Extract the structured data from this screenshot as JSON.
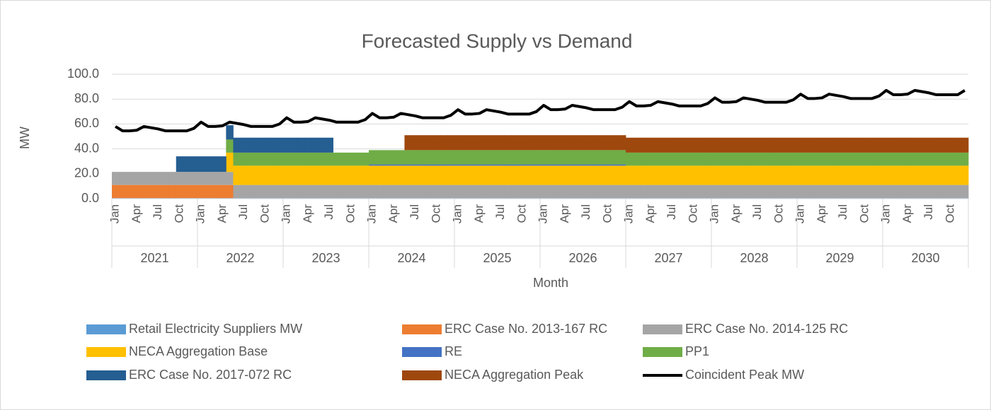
{
  "chart_data": {
    "type": "area",
    "title": "Forecasted Supply vs Demand",
    "y_label": "MW",
    "x_label": "Month",
    "ylim": [
      0,
      100
    ],
    "yticks": [
      {
        "value": 0,
        "label": "0.0"
      },
      {
        "value": 20,
        "label": "20.0"
      },
      {
        "value": 40,
        "label": "40.0"
      },
      {
        "value": 60,
        "label": "60.0"
      },
      {
        "value": 80,
        "label": "80.0"
      },
      {
        "value": 100,
        "label": "100.0"
      }
    ],
    "grid": true,
    "legend": "bottom",
    "years": [
      "2021",
      "2022",
      "2023",
      "2024",
      "2025",
      "2026",
      "2027",
      "2028",
      "2029",
      "2030"
    ],
    "categories": [
      "Jan",
      null,
      null,
      "Apr",
      null,
      null,
      "Jul",
      null,
      null,
      "Oct",
      null,
      null,
      "Jan",
      null,
      null,
      "Apr",
      null,
      null,
      "Jul",
      null,
      null,
      "Oct",
      null,
      null,
      "Jan",
      null,
      null,
      "Apr",
      null,
      null,
      "Jul",
      null,
      null,
      "Oct",
      null,
      null,
      "Jan",
      null,
      null,
      "Apr",
      null,
      null,
      "Jul",
      null,
      null,
      "Oct",
      null,
      null,
      "Jan",
      null,
      null,
      "Apr",
      null,
      null,
      "Jul",
      null,
      null,
      "Oct",
      null,
      null,
      "Jan",
      null,
      null,
      "Apr",
      null,
      null,
      "Jul",
      null,
      null,
      "Oct",
      null,
      null,
      "Jan",
      null,
      null,
      "Apr",
      null,
      null,
      "Jul",
      null,
      null,
      "Oct",
      null,
      null,
      "Jan",
      null,
      null,
      "Apr",
      null,
      null,
      "Jul",
      null,
      null,
      "Oct",
      null,
      null,
      "Jan",
      null,
      null,
      "Apr",
      null,
      null,
      "Jul",
      null,
      null,
      "Oct",
      null,
      null,
      "Jan",
      null,
      null,
      "Apr",
      null,
      null,
      "Jul",
      null,
      null,
      "Oct",
      null,
      null
    ],
    "series": [
      {
        "name": "Retail Electricity Suppliers MW",
        "color": "#5b9bd5",
        "values": [
          0.5,
          0.5,
          0.5,
          0.5,
          0.5,
          0.5,
          0.5,
          0.5,
          0.5,
          0.5,
          0.5,
          0.5,
          0.5,
          0.5,
          0.5,
          0.5,
          0.5,
          0.5,
          0.5,
          0.5,
          0.5,
          0.5,
          0.5,
          0.5,
          0.5,
          0.5,
          0.5,
          0.5,
          0.5,
          0.5,
          0.5,
          0.5,
          0.5,
          0.5,
          0.5,
          0.5,
          0.5,
          0.5,
          0.5,
          0.5,
          0.5,
          0.5,
          0.5,
          0.5,
          0.5,
          0.5,
          0.5,
          0.5,
          0.5,
          0.5,
          0.5,
          0.5,
          0.5,
          0.5,
          0.5,
          0.5,
          0.5,
          0.5,
          0.5,
          0.5,
          0.5,
          0.5,
          0.5,
          0.5,
          0.5,
          0.5,
          0.5,
          0.5,
          0.5,
          0.5,
          0.5,
          0.5,
          0.5,
          0.5,
          0.5,
          0.5,
          0.5,
          0.5,
          0.5,
          0.5,
          0.5,
          0.5,
          0.5,
          0.5,
          0.5,
          0.5,
          0.5,
          0.5,
          0.5,
          0.5,
          0.5,
          0.5,
          0.5,
          0.5,
          0.5,
          0.5,
          0.5,
          0.5,
          0.5,
          0.5,
          0.5,
          0.5,
          0.5,
          0.5,
          0.5,
          0.5,
          0.5,
          0.5,
          0.5,
          0.5,
          0.5,
          0.5,
          0.5,
          0.5,
          0.5,
          0.5,
          0.5,
          0.5,
          0.5,
          0.5
        ]
      },
      {
        "name": "ERC Case No. 2013-167 RC",
        "color": "#ed7d31",
        "values": [
          10.5,
          10.5,
          10.5,
          10.5,
          10.5,
          10.5,
          10.5,
          10.5,
          10.5,
          10.5,
          10.5,
          10.5,
          10.5,
          10.5,
          10.5,
          10.5,
          10.5,
          0,
          0,
          0,
          0,
          0,
          0,
          0,
          0,
          0,
          0,
          0,
          0,
          0,
          0,
          0,
          0,
          0,
          0,
          0,
          0,
          0,
          0,
          0,
          0,
          0,
          0,
          0,
          0,
          0,
          0,
          0,
          0,
          0,
          0,
          0,
          0,
          0,
          0,
          0,
          0,
          0,
          0,
          0,
          0,
          0,
          0,
          0,
          0,
          0,
          0,
          0,
          0,
          0,
          0,
          0,
          0,
          0,
          0,
          0,
          0,
          0,
          0,
          0,
          0,
          0,
          0,
          0,
          0,
          0,
          0,
          0,
          0,
          0,
          0,
          0,
          0,
          0,
          0,
          0,
          0,
          0,
          0,
          0,
          0,
          0,
          0,
          0,
          0,
          0,
          0,
          0,
          0,
          0,
          0,
          0,
          0,
          0,
          0,
          0,
          0,
          0,
          0,
          0
        ]
      },
      {
        "name": "ERC Case No. 2014-125 RC",
        "color": "#a5a5a5",
        "values": [
          10.5,
          10.5,
          10.5,
          10.5,
          10.5,
          10.5,
          10.5,
          10.5,
          10.5,
          10.5,
          10.5,
          10.5,
          10.5,
          10.5,
          10.5,
          10.5,
          10.5,
          10.5,
          10.5,
          10.5,
          10.5,
          10.5,
          10.5,
          10.5,
          10.5,
          10.5,
          10.5,
          10.5,
          10.5,
          10.5,
          10.5,
          10.5,
          10.5,
          10.5,
          10.5,
          10.5,
          10.5,
          10.5,
          10.5,
          10.5,
          10.5,
          10.5,
          10.5,
          10.5,
          10.5,
          10.5,
          10.5,
          10.5,
          10.5,
          10.5,
          10.5,
          10.5,
          10.5,
          10.5,
          10.5,
          10.5,
          10.5,
          10.5,
          10.5,
          10.5,
          10.5,
          10.5,
          10.5,
          10.5,
          10.5,
          10.5,
          10.5,
          10.5,
          10.5,
          10.5,
          10.5,
          10.5,
          10.5,
          10.5,
          10.5,
          10.5,
          10.5,
          10.5,
          10.5,
          10.5,
          10.5,
          10.5,
          10.5,
          10.5,
          10.5,
          10.5,
          10.5,
          10.5,
          10.5,
          10.5,
          10.5,
          10.5,
          10.5,
          10.5,
          10.5,
          10.5,
          10.5,
          10.5,
          10.5,
          10.5,
          10.5,
          10.5,
          10.5,
          10.5,
          10.5,
          10.5,
          10.5,
          10.5,
          10.5,
          10.5,
          10.5,
          10.5,
          10.5,
          10.5,
          10.5,
          10.5,
          10.5,
          10.5,
          10.5,
          10.5
        ]
      },
      {
        "name": "NECA Aggregation Base",
        "color": "#ffc000",
        "values": [
          0,
          0,
          0,
          0,
          0,
          0,
          0,
          0,
          0,
          0,
          0,
          0,
          0,
          0,
          0,
          0,
          15.5,
          15.5,
          15.5,
          15.5,
          15.5,
          15.5,
          15.5,
          15.5,
          15.5,
          15.5,
          15.5,
          15.5,
          15.5,
          15.5,
          15.5,
          15.5,
          15.5,
          15.5,
          15.5,
          15.5,
          15.5,
          15.5,
          15.5,
          15.5,
          15.5,
          15.5,
          15.5,
          15.5,
          15.5,
          15.5,
          15.5,
          15.5,
          15.5,
          15.5,
          15.5,
          15.5,
          15.5,
          15.5,
          15.5,
          15.5,
          15.5,
          15.5,
          15.5,
          15.5,
          15.5,
          15.5,
          15.5,
          15.5,
          15.5,
          15.5,
          15.5,
          15.5,
          15.5,
          15.5,
          15.5,
          15.5,
          15.5,
          15.5,
          15.5,
          15.5,
          15.5,
          15.5,
          15.5,
          15.5,
          15.5,
          15.5,
          15.5,
          15.5,
          15.5,
          15.5,
          15.5,
          15.5,
          15.5,
          15.5,
          15.5,
          15.5,
          15.5,
          15.5,
          15.5,
          15.5,
          15.5,
          15.5,
          15.5,
          15.5,
          15.5,
          15.5,
          15.5,
          15.5,
          15.5,
          15.5,
          15.5,
          15.5,
          15.5,
          15.5,
          15.5,
          15.5,
          15.5,
          15.5,
          15.5,
          15.5,
          15.5,
          15.5,
          15.5,
          15.5
        ]
      },
      {
        "name": "RE",
        "color": "#4472c4",
        "values": [
          0,
          0,
          0,
          0,
          0,
          0,
          0,
          0,
          0,
          0,
          0,
          0,
          0,
          0,
          0,
          0,
          0,
          0,
          0,
          0,
          0,
          0,
          0,
          0,
          0,
          0,
          0,
          0,
          0,
          0,
          0,
          0,
          0,
          0,
          0,
          0,
          1,
          1,
          1,
          1,
          1,
          1,
          1,
          1,
          1,
          1,
          1,
          1,
          1,
          1,
          1,
          1,
          1,
          1,
          1,
          1,
          1,
          1,
          1,
          1,
          1,
          1,
          1,
          1,
          1,
          1,
          1,
          1,
          1,
          1,
          1,
          1,
          0,
          0,
          0,
          0,
          0,
          0,
          0,
          0,
          0,
          0,
          0,
          0,
          0,
          0,
          0,
          0,
          0,
          0,
          0,
          0,
          0,
          0,
          0,
          0,
          0,
          0,
          0,
          0,
          0,
          0,
          0,
          0,
          0,
          0,
          0,
          0,
          0,
          0,
          0,
          0,
          0,
          0,
          0,
          0,
          0,
          0,
          0,
          0
        ]
      },
      {
        "name": "PP1",
        "color": "#70ad47",
        "values": [
          0,
          0,
          0,
          0,
          0,
          0,
          0,
          0,
          0,
          0,
          0,
          0,
          0,
          0,
          0,
          0,
          10.5,
          10.5,
          10.5,
          10.5,
          10.5,
          10.5,
          10.5,
          10.5,
          10.5,
          10.5,
          10.5,
          10.5,
          10.5,
          10.5,
          10.5,
          10.5,
          10.5,
          10.5,
          10.5,
          10.5,
          11.5,
          11.5,
          11.5,
          11.5,
          11.5,
          11.5,
          11.5,
          11.5,
          11.5,
          11.5,
          11.5,
          11.5,
          11.5,
          11.5,
          11.5,
          11.5,
          11.5,
          11.5,
          11.5,
          11.5,
          11.5,
          11.5,
          11.5,
          11.5,
          11.5,
          11.5,
          11.5,
          11.5,
          11.5,
          11.5,
          11.5,
          11.5,
          11.5,
          11.5,
          11.5,
          11.5,
          10.5,
          10.5,
          10.5,
          10.5,
          10.5,
          10.5,
          10.5,
          10.5,
          10.5,
          10.5,
          10.5,
          10.5,
          10.5,
          10.5,
          10.5,
          10.5,
          10.5,
          10.5,
          10.5,
          10.5,
          10.5,
          10.5,
          10.5,
          10.5,
          10.5,
          10.5,
          10.5,
          10.5,
          10.5,
          10.5,
          10.5,
          10.5,
          10.5,
          10.5,
          10.5,
          10.5,
          10.5,
          10.5,
          10.5,
          10.5,
          10.5,
          10.5,
          10.5,
          10.5,
          10.5,
          10.5,
          10.5,
          10.5
        ]
      },
      {
        "name": "ERC Case No. 2017-072 RC",
        "color": "#255e91",
        "values": [
          0,
          0,
          0,
          0,
          0,
          0,
          0,
          0,
          0,
          12.5,
          12.5,
          12.5,
          12.5,
          12.5,
          12.5,
          12.5,
          11.5,
          12,
          12,
          12,
          12,
          12,
          12,
          12,
          12,
          12,
          12,
          12,
          12,
          12,
          12,
          0,
          0,
          0,
          0,
          0,
          0,
          0,
          0,
          0,
          0,
          0,
          0,
          0,
          0,
          0,
          0,
          0,
          0,
          0,
          0,
          0,
          0,
          0,
          0,
          0,
          0,
          0,
          0,
          0,
          0,
          0,
          0,
          0,
          0,
          0,
          0,
          0,
          0,
          0,
          0,
          0,
          0,
          0,
          0,
          0,
          0,
          0,
          0,
          0,
          0,
          0,
          0,
          0,
          0,
          0,
          0,
          0,
          0,
          0,
          0,
          0,
          0,
          0,
          0,
          0,
          0,
          0,
          0,
          0,
          0,
          0,
          0,
          0,
          0,
          0,
          0,
          0,
          0,
          0,
          0,
          0,
          0,
          0,
          0,
          0,
          0,
          0,
          0,
          0
        ]
      },
      {
        "name": "NECA Aggregation Peak",
        "color": "#9e480e",
        "values": [
          0,
          0,
          0,
          0,
          0,
          0,
          0,
          0,
          0,
          0,
          0,
          0,
          0,
          0,
          0,
          0,
          0,
          0,
          0,
          0,
          0,
          0,
          0,
          0,
          0,
          0,
          0,
          0,
          0,
          0,
          0,
          0,
          0,
          0,
          0,
          0,
          0,
          0,
          0,
          0,
          0,
          12,
          12,
          12,
          12,
          12,
          12,
          12,
          12,
          12,
          12,
          12,
          12,
          12,
          12,
          12,
          12,
          12,
          12,
          12,
          12,
          12,
          12,
          12,
          12,
          12,
          12,
          12,
          12,
          12,
          12,
          12,
          12,
          12,
          12,
          12,
          12,
          12,
          12,
          12,
          12,
          12,
          12,
          12,
          12,
          12,
          12,
          12,
          12,
          12,
          12,
          12,
          12,
          12,
          12,
          12,
          12,
          12,
          12,
          12,
          12,
          12,
          12,
          12,
          12,
          12,
          12,
          12,
          12,
          12,
          12,
          12,
          12,
          12,
          12,
          12,
          12,
          12,
          12,
          12
        ]
      },
      {
        "name": "Coincident Peak MW",
        "color": "#000000",
        "type": "line",
        "values": [
          58,
          54.5,
          54.5,
          55,
          58,
          57,
          56,
          54.5,
          54.5,
          54.5,
          54.5,
          56.5,
          61.5,
          58,
          58,
          58.5,
          61.5,
          60.5,
          59.5,
          58,
          58,
          58,
          58,
          60,
          65,
          61.5,
          61.5,
          62,
          65,
          64,
          63,
          61.5,
          61.5,
          61.5,
          61.5,
          63.5,
          68.5,
          65,
          65,
          65.5,
          68.5,
          67.5,
          66.5,
          65,
          65,
          65,
          65,
          67,
          71.5,
          68,
          68,
          68.5,
          71.5,
          70.5,
          69.5,
          68,
          68,
          68,
          68,
          70,
          75,
          71.5,
          71.5,
          72,
          75,
          74,
          73,
          71.5,
          71.5,
          71.5,
          71.5,
          73.5,
          78,
          74.5,
          74.5,
          75,
          78,
          77,
          76,
          74.5,
          74.5,
          74.5,
          74.5,
          76.5,
          81,
          77.5,
          77.5,
          78,
          81,
          80,
          79,
          77.5,
          77.5,
          77.5,
          77.5,
          79.5,
          84,
          80.5,
          80.5,
          81,
          84,
          83,
          82,
          80.5,
          80.5,
          80.5,
          80.5,
          82.5,
          87,
          83.5,
          83.5,
          84,
          87,
          86,
          85,
          83.5,
          83.5,
          83.5,
          83.5,
          87
        ]
      }
    ]
  }
}
